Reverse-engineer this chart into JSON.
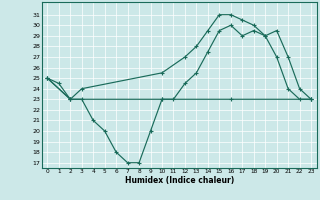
{
  "xlabel": "Humidex (Indice chaleur)",
  "bg_color": "#cce8e8",
  "line_color": "#1a6b5a",
  "grid_color": "#ffffff",
  "xlim": [
    -0.5,
    23.5
  ],
  "ylim": [
    16.5,
    32.2
  ],
  "xticks": [
    0,
    1,
    2,
    3,
    4,
    5,
    6,
    7,
    8,
    9,
    10,
    11,
    12,
    13,
    14,
    15,
    16,
    17,
    18,
    19,
    20,
    21,
    22,
    23
  ],
  "yticks": [
    17,
    18,
    19,
    20,
    21,
    22,
    23,
    24,
    25,
    26,
    27,
    28,
    29,
    30,
    31
  ],
  "line1_x": [
    0,
    1,
    2,
    3,
    4,
    5,
    6,
    7,
    8,
    9,
    10,
    11,
    12,
    13,
    14,
    15,
    16,
    17,
    18,
    19,
    20,
    21,
    22,
    23
  ],
  "line1_y": [
    25.0,
    24.5,
    23.0,
    23.0,
    21.0,
    20.0,
    18.0,
    17.0,
    17.0,
    20.0,
    23.0,
    23.0,
    24.5,
    25.5,
    27.5,
    29.5,
    30.0,
    29.0,
    29.5,
    29.0,
    27.0,
    24.0,
    23.0,
    23.0
  ],
  "line2_x": [
    0,
    2,
    10,
    16,
    23
  ],
  "line2_y": [
    25.0,
    23.0,
    23.0,
    23.0,
    23.0
  ],
  "line3_x": [
    0,
    2,
    3,
    10,
    12,
    13,
    14,
    15,
    16,
    17,
    18,
    19,
    20,
    21,
    22,
    23
  ],
  "line3_y": [
    25.0,
    23.0,
    24.0,
    25.5,
    27.0,
    28.0,
    29.5,
    31.0,
    31.0,
    30.5,
    30.0,
    29.0,
    29.5,
    27.0,
    24.0,
    23.0
  ]
}
